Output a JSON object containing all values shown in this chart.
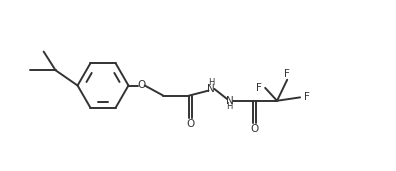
{
  "bg_color": "#ffffff",
  "line_color": "#333333",
  "text_color": "#333333",
  "line_width": 1.4,
  "font_size": 7.5,
  "fig_width": 3.96,
  "fig_height": 1.71,
  "dpi": 100,
  "xlim": [
    0,
    11
  ],
  "ylim": [
    0,
    5
  ]
}
